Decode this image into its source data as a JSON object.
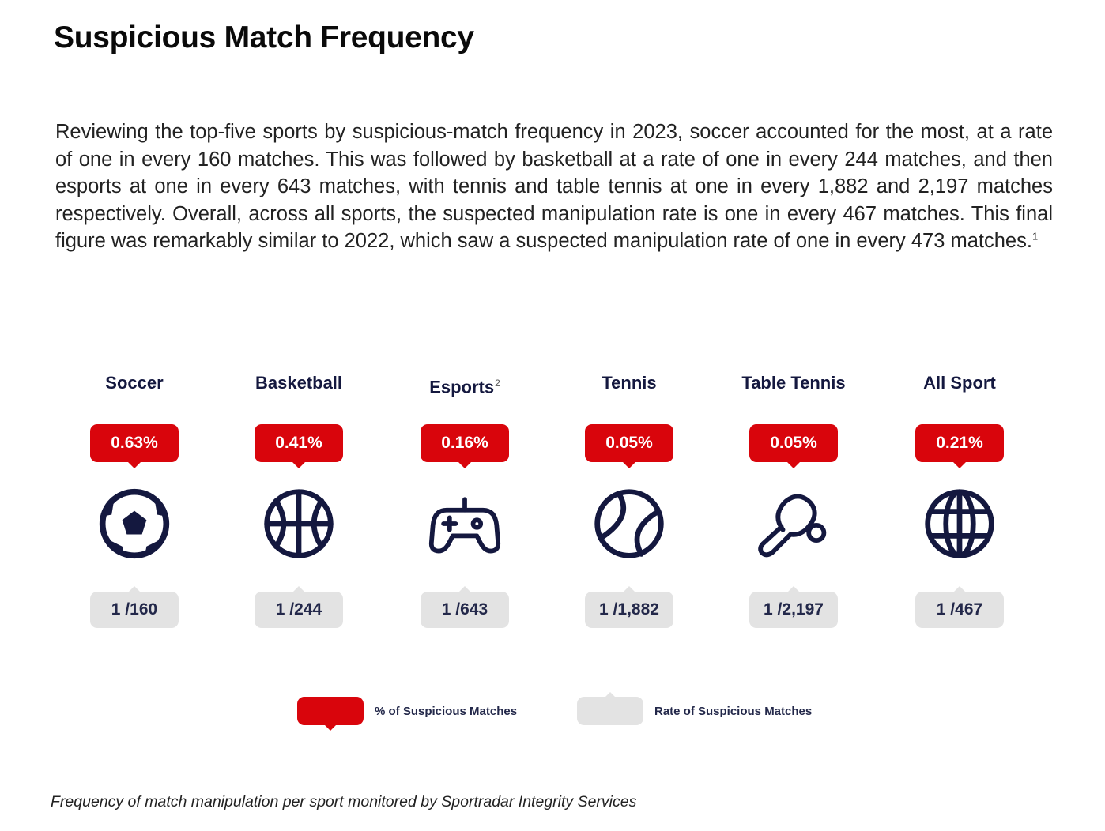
{
  "title": "Suspicious Match Frequency",
  "body": {
    "text": "Reviewing the top-five sports by suspicious-match frequency in 2023, soccer accounted for the most, at a rate of one in every 160 matches. This was followed by basketball at a rate of one in every 244 matches, and then esports at one in every 643 matches, with tennis and table tennis at one in every 1,882 and 2,197 matches respectively. Overall, across all sports, the suspected manipulation rate is one in every 467 matches. This final figure was remarkably similar to 2022, which saw a suspected manipulation rate of one in every 473 matches.",
    "footnote_marker": "1"
  },
  "chart_data": {
    "type": "table",
    "categories": [
      "Soccer",
      "Basketball",
      "Esports",
      "Tennis",
      "Table Tennis",
      "All Sport"
    ],
    "category_footnotes": [
      "",
      "",
      "2",
      "",
      "",
      ""
    ],
    "icons": [
      "soccer-ball-icon",
      "basketball-icon",
      "gamepad-icon",
      "tennis-ball-icon",
      "table-tennis-paddle-icon",
      "globe-icon"
    ],
    "series": [
      {
        "name": "% of Suspicious Matches",
        "color": "#d9050c",
        "values": [
          0.63,
          0.41,
          0.16,
          0.05,
          0.05,
          0.21
        ],
        "labels": [
          "0.63%",
          "0.41%",
          "0.16%",
          "0.05%",
          "0.05%",
          "0.21%"
        ]
      },
      {
        "name": "Rate of Suspicious Matches",
        "color": "#e3e3e3",
        "values": [
          160,
          244,
          643,
          1882,
          2197,
          467
        ],
        "labels": [
          "1 /160",
          "1 /244",
          "1 /643",
          "1 /1,882",
          "1 /2,197",
          "1 /467"
        ]
      }
    ],
    "legend": {
      "position": "bottom-center",
      "items": [
        "% of Suspicious Matches",
        "Rate of Suspicious Matches"
      ]
    }
  },
  "colors": {
    "accent_red": "#d9050c",
    "badge_grey": "#e3e3e3",
    "icon_navy": "#14183f"
  },
  "caption": "Frequency of match manipulation per sport monitored by Sportradar Integrity Services"
}
